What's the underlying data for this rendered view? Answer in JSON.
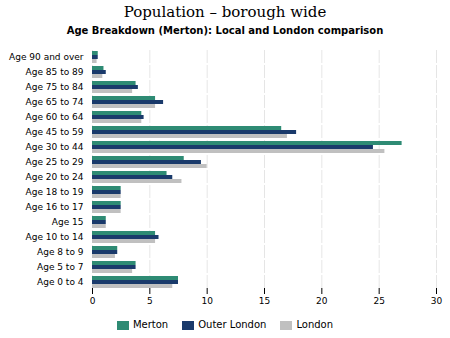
{
  "chart_data": {
    "type": "bar",
    "orientation": "horizontal",
    "title": "Population – borough wide",
    "subtitle": "Age Breakdown (Merton): Local and London comparison",
    "categories": [
      "Age 90 and over",
      "Age 85 to 89",
      "Age 75 to 84",
      "Age 65 to 74",
      "Age 60 to 64",
      "Age 45 to 59",
      "Age 30 to 44",
      "Age 25 to 29",
      "Age 20 to 24",
      "Age 18 to 19",
      "Age 16 to 17",
      "Age 15",
      "Age 10 to 14",
      "Age 8 to 9",
      "Age 5 to 7",
      "Age 0 to 4"
    ],
    "series": [
      {
        "name": "Merton",
        "color": "#2e8b74",
        "values": [
          0.5,
          1.0,
          3.8,
          5.5,
          4.3,
          16.5,
          27.0,
          8.0,
          6.5,
          2.5,
          2.5,
          1.2,
          5.5,
          2.2,
          3.8,
          7.5
        ]
      },
      {
        "name": "Outer London",
        "color": "#1a3a6b",
        "values": [
          0.5,
          1.2,
          4.0,
          6.2,
          4.5,
          17.8,
          24.5,
          9.5,
          7.0,
          2.5,
          2.5,
          1.2,
          5.8,
          2.2,
          3.8,
          7.5
        ]
      },
      {
        "name": "London",
        "color": "#c0c0c0",
        "values": [
          0.4,
          0.9,
          3.5,
          5.5,
          4.3,
          17.0,
          25.5,
          10.0,
          7.8,
          2.5,
          2.5,
          1.2,
          5.5,
          2.0,
          3.5,
          7.0
        ]
      }
    ],
    "xlim": [
      0,
      30
    ],
    "xticks": [
      0,
      5,
      10,
      15,
      20,
      25,
      30
    ],
    "grid": true,
    "legend": "bottom"
  }
}
